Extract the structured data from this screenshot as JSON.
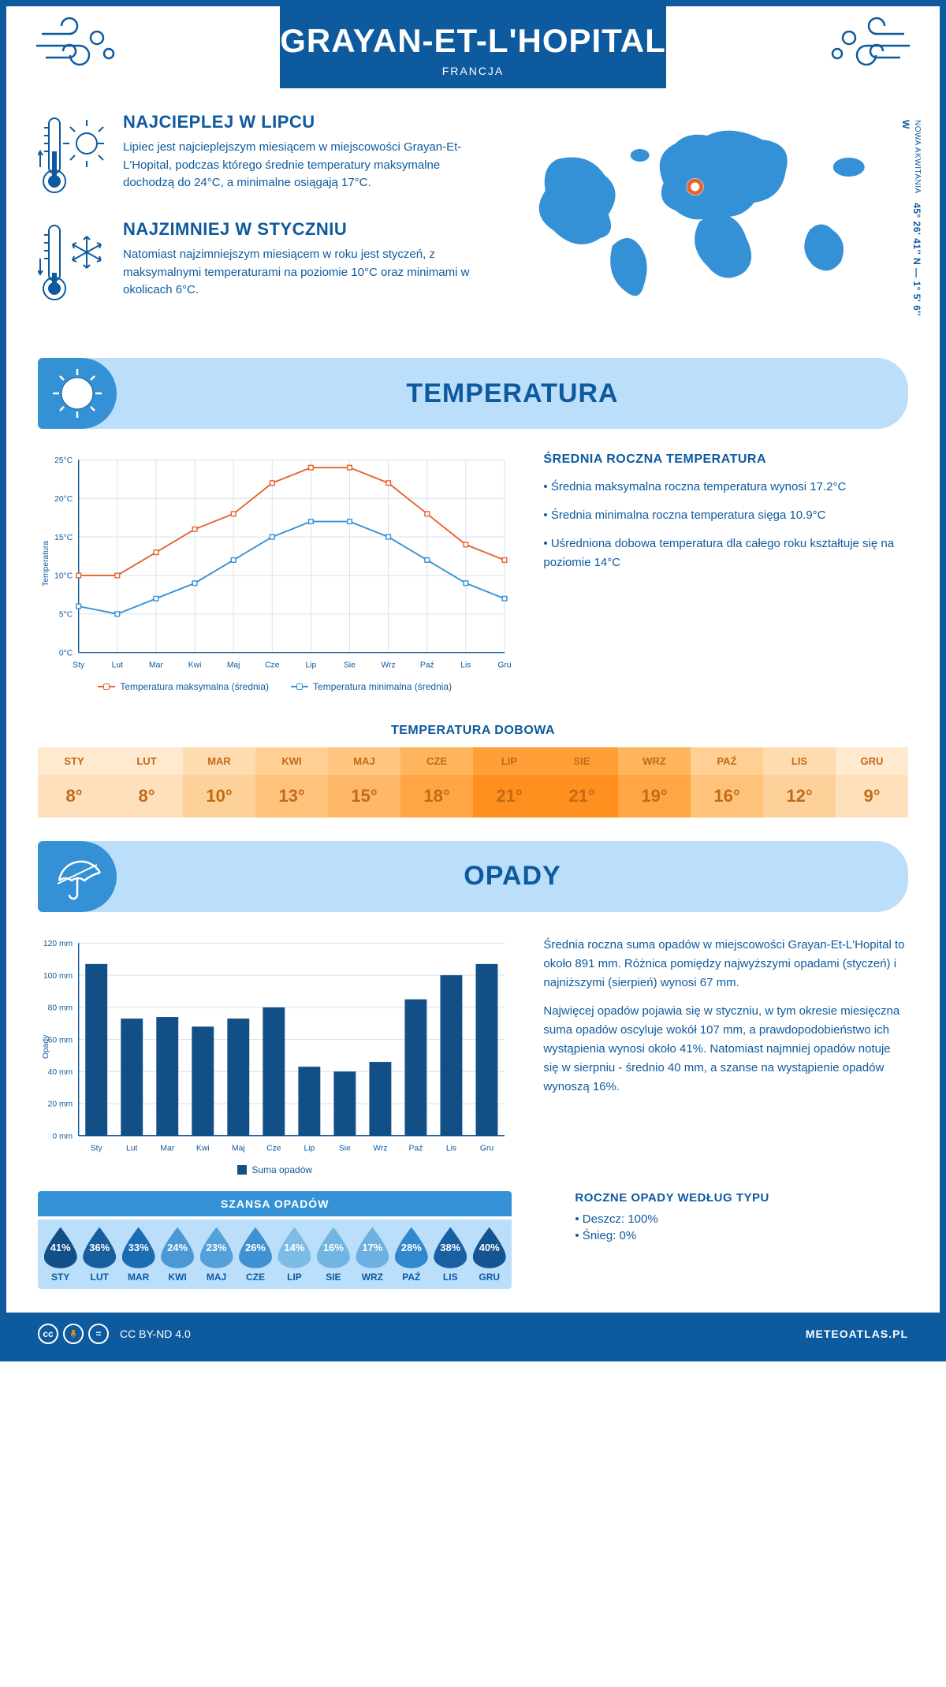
{
  "header": {
    "title": "GRAYAN-ET-L'HOPITAL",
    "subtitle": "FRANCJA"
  },
  "coords": {
    "lat": "45° 26' 41'' N",
    "lon": "1° 5' 6'' W",
    "region": "NOWA AKWITANIA"
  },
  "warm": {
    "title": "NAJCIEPLEJ W LIPCU",
    "text": "Lipiec jest najcieplejszym miesiącem w miejscowości Grayan-Et-L'Hopital, podczas którego średnie temperatury maksymalne dochodzą do 24°C, a minimalne osiągają 17°C."
  },
  "cold": {
    "title": "NAJZIMNIEJ W STYCZNIU",
    "text": "Natomiast najzimniejszym miesiącem w roku jest styczeń, z maksymalnymi temperaturami na poziomie 10°C oraz minimami w okolicach 6°C."
  },
  "sections": {
    "temp": "TEMPERATURA",
    "precip": "OPADY"
  },
  "tempChart": {
    "type": "line",
    "months": [
      "Sty",
      "Lut",
      "Mar",
      "Kwi",
      "Maj",
      "Cze",
      "Lip",
      "Sie",
      "Wrz",
      "Paź",
      "Lis",
      "Gru"
    ],
    "maxSeries": [
      10,
      10,
      13,
      16,
      18,
      22,
      24,
      24,
      22,
      18,
      14,
      12
    ],
    "minSeries": [
      6,
      5,
      7,
      9,
      12,
      15,
      17,
      17,
      15,
      12,
      9,
      7
    ],
    "maxColor": "#e8622c",
    "minColor": "#3591d6",
    "grid_color": "#d6e0ea",
    "background": "#ffffff",
    "ylim": [
      0,
      25
    ],
    "ytick_step": 5,
    "ylabel": "Temperatura",
    "legend_max": "Temperatura maksymalna (średnia)",
    "legend_min": "Temperatura minimalna (średnia)"
  },
  "tempAvg": {
    "title": "ŚREDNIA ROCZNA TEMPERATURA",
    "bullets": [
      "Średnia maksymalna roczna temperatura wynosi 17.2°C",
      "Średnia minimalna roczna temperatura sięga 10.9°C",
      "Uśredniona dobowa temperatura dla całego roku kształtuje się na poziomie 14°C"
    ]
  },
  "dailyTemp": {
    "title": "TEMPERATURA DOBOWA",
    "months": [
      "STY",
      "LUT",
      "MAR",
      "KWI",
      "MAJ",
      "CZE",
      "LIP",
      "SIE",
      "WRZ",
      "PAŹ",
      "LIS",
      "GRU"
    ],
    "values": [
      "8°",
      "8°",
      "10°",
      "13°",
      "15°",
      "18°",
      "21°",
      "21°",
      "19°",
      "16°",
      "12°",
      "9°"
    ],
    "colors_header": [
      "#ffe9cf",
      "#ffe9cf",
      "#ffdcb0",
      "#ffcf93",
      "#ffc581",
      "#ffb45e",
      "#ff9f38",
      "#ff9f38",
      "#ffb45e",
      "#ffcf93",
      "#ffdcb0",
      "#ffe9cf"
    ],
    "colors_value": [
      "#ffe0bd",
      "#ffe0bd",
      "#ffd19a",
      "#ffc27b",
      "#ffb768",
      "#ffa544",
      "#ff8f1f",
      "#ff8f1f",
      "#ffa544",
      "#ffc27b",
      "#ffd19a",
      "#ffe0bd"
    ],
    "text_color": "#c26a16"
  },
  "precipChart": {
    "type": "bar",
    "months": [
      "Sty",
      "Lut",
      "Mar",
      "Kwi",
      "Maj",
      "Cze",
      "Lip",
      "Sie",
      "Wrz",
      "Paź",
      "Lis",
      "Gru"
    ],
    "values": [
      107,
      73,
      74,
      68,
      73,
      80,
      43,
      40,
      46,
      85,
      100,
      107
    ],
    "bar_color": "#124f87",
    "grid_color": "#d6e0ea",
    "ylim": [
      0,
      120
    ],
    "ytick_step": 20,
    "ylabel": "Opady",
    "legend": "Suma opadów"
  },
  "precipText": {
    "p1": "Średnia roczna suma opadów w miejscowości Grayan-Et-L'Hopital to około 891 mm. Różnica pomiędzy najwyższymi opadami (styczeń) i najniższymi (sierpień) wynosi 67 mm.",
    "p2": "Najwięcej opadów pojawia się w styczniu, w tym okresie miesięczna suma opadów oscyluje wokół 107 mm, a prawdopodobieństwo ich wystąpienia wynosi około 41%. Natomiast najmniej opadów notuje się w sierpniu - średnio 40 mm, a szanse na wystąpienie opadów wynoszą 16%."
  },
  "chance": {
    "title": "SZANSA OPADÓW",
    "months": [
      "STY",
      "LUT",
      "MAR",
      "KWI",
      "MAJ",
      "CZE",
      "LIP",
      "SIE",
      "WRZ",
      "PAŹ",
      "LIS",
      "GRU"
    ],
    "values": [
      "41%",
      "36%",
      "33%",
      "24%",
      "23%",
      "26%",
      "14%",
      "16%",
      "17%",
      "28%",
      "38%",
      "40%"
    ],
    "colors": [
      "#124f87",
      "#165e9e",
      "#1b6cb3",
      "#4a99d6",
      "#54a0d9",
      "#3f91d1",
      "#7cbce6",
      "#72b5e3",
      "#6cb1e1",
      "#3288cb",
      "#195fa1",
      "#14558f"
    ]
  },
  "precipTypes": {
    "title": "ROCZNE OPADY WEDŁUG TYPU",
    "items": [
      "Deszcz: 100%",
      "Śnieg: 0%"
    ]
  },
  "footer": {
    "license": "CC BY-ND 4.0",
    "site": "METEOATLAS.PL"
  }
}
